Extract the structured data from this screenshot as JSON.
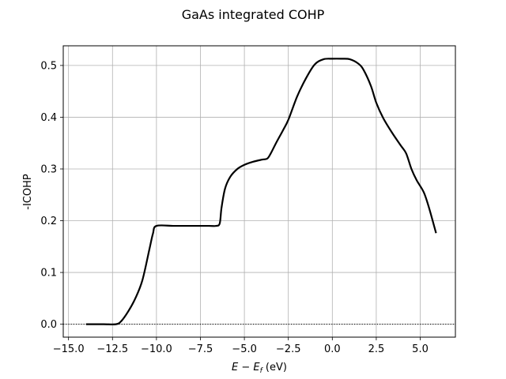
{
  "chart_data": {
    "type": "line",
    "title": "GaAs integrated COHP",
    "xlabel": "E − E",
    "xlabel_sub": "f",
    "xlabel_unit": " (eV)",
    "ylabel": "-ICOHP",
    "xlim": [
      -15.3,
      7.0
    ],
    "ylim": [
      -0.025,
      0.538
    ],
    "x_ticks": [
      -15.0,
      -12.5,
      -10.0,
      -7.5,
      -5.0,
      -2.5,
      0.0,
      2.5,
      5.0
    ],
    "x_tick_labels": [
      "−15.0",
      "−12.5",
      "−10.0",
      "−7.5",
      "−5.0",
      "−2.5",
      "0.0",
      "2.5",
      "5.0"
    ],
    "y_ticks": [
      0.0,
      0.1,
      0.2,
      0.3,
      0.4,
      0.5
    ],
    "y_tick_labels": [
      "0.0",
      "0.1",
      "0.2",
      "0.3",
      "0.4",
      "0.5"
    ],
    "grid": true,
    "zero_line": {
      "y": 0.0,
      "style": "dotted"
    },
    "series": [
      {
        "color": "#000000",
        "x": [
          -14.0,
          -13.0,
          -12.3,
          -12.0,
          -11.6,
          -11.2,
          -10.8,
          -10.4,
          -10.2,
          -10.0,
          -9.0,
          -8.0,
          -7.0,
          -6.6,
          -6.4,
          -6.3,
          -6.1,
          -5.8,
          -5.4,
          -5.0,
          -4.5,
          -4.0,
          -3.7,
          -3.5,
          -3.2,
          -2.8,
          -2.5,
          -2.0,
          -1.5,
          -1.0,
          -0.5,
          0.0,
          0.5,
          1.0,
          1.5,
          1.8,
          2.2,
          2.5,
          2.9,
          3.4,
          3.9,
          4.2,
          4.5,
          4.8,
          5.2,
          5.5,
          5.9
        ],
        "y": [
          0.0,
          0.0,
          0.0,
          0.006,
          0.025,
          0.05,
          0.085,
          0.145,
          0.175,
          0.19,
          0.19,
          0.19,
          0.19,
          0.19,
          0.195,
          0.225,
          0.262,
          0.285,
          0.3,
          0.308,
          0.314,
          0.318,
          0.32,
          0.33,
          0.35,
          0.375,
          0.395,
          0.44,
          0.475,
          0.502,
          0.512,
          0.513,
          0.513,
          0.512,
          0.503,
          0.49,
          0.46,
          0.428,
          0.398,
          0.37,
          0.345,
          0.33,
          0.3,
          0.278,
          0.255,
          0.225,
          0.176
        ]
      }
    ]
  }
}
